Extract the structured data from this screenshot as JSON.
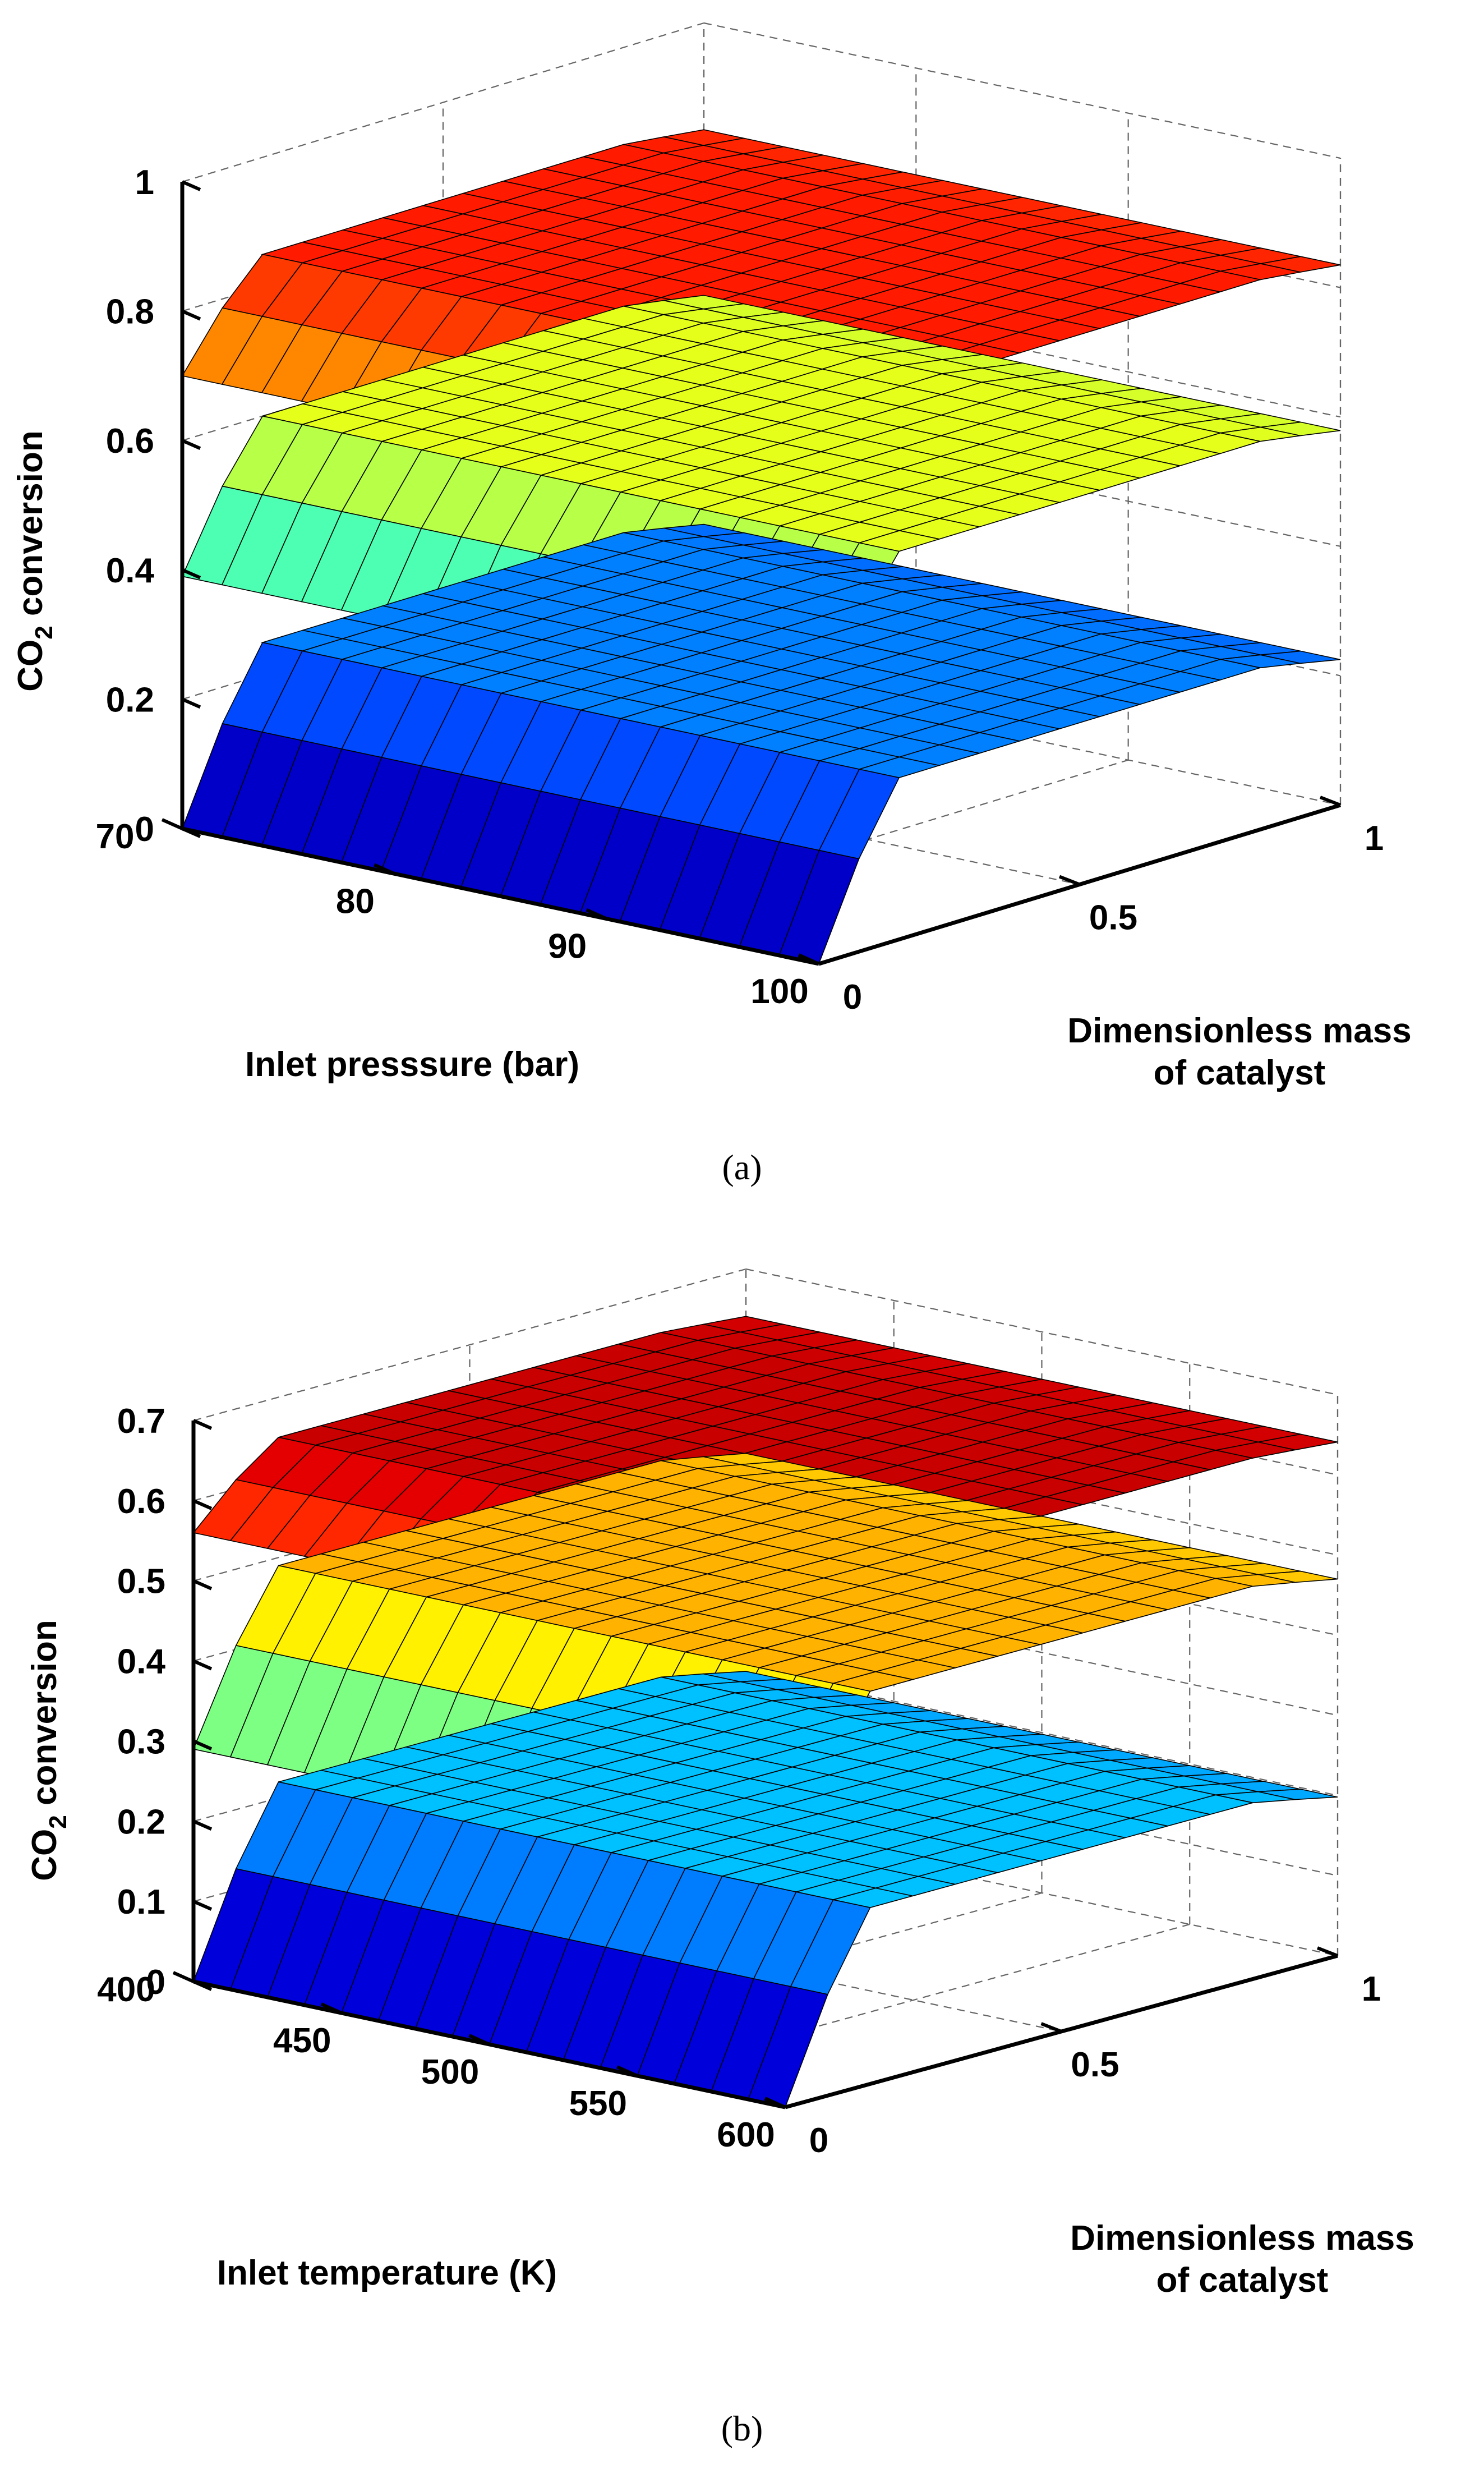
{
  "chart_data": [
    {
      "id": "a",
      "type": "surface",
      "caption": "(a)",
      "xlabel": "Inlet presssure (bar)",
      "ylabel_lines": [
        "Dimensionless mass",
        "of catalyst"
      ],
      "zlabel": "CO2 conversion",
      "zlabel_base": "CO",
      "zlabel_sub": "2",
      "zlabel_rest": " conversion",
      "xlim": [
        70,
        100
      ],
      "ylim": [
        0,
        1
      ],
      "zlim": [
        0,
        1
      ],
      "xticks": [
        "70",
        "80",
        "90",
        "100"
      ],
      "yticks": [
        "0",
        "0.5",
        "1"
      ],
      "zticks": [
        "0",
        "0.2",
        "0.4",
        "0.6",
        "0.8",
        "1"
      ],
      "surfaces": [
        {
          "name": "low",
          "min": 0.0,
          "plateau": 0.25
        },
        {
          "name": "mid",
          "min": 0.39,
          "plateau": 0.6
        },
        {
          "name": "high",
          "min": 0.7,
          "plateau": 0.85
        }
      ]
    },
    {
      "id": "b",
      "type": "surface",
      "caption": "(b)",
      "xlabel": "Inlet temperature (K)",
      "ylabel_lines": [
        "Dimensionless mass",
        "of catalyst"
      ],
      "zlabel": "CO2 conversion",
      "zlabel_base": "CO",
      "zlabel_sub": "2",
      "zlabel_rest": " conversion",
      "xlim": [
        400,
        600
      ],
      "ylim": [
        0,
        1
      ],
      "zlim": [
        0,
        0.7
      ],
      "xticks": [
        "400",
        "450",
        "500",
        "550",
        "600"
      ],
      "yticks": [
        "0",
        "0.5",
        "1"
      ],
      "zticks": [
        "0",
        "0.1",
        "0.2",
        "0.3",
        "0.4",
        "0.5",
        "0.6",
        "0.7"
      ],
      "surfaces": [
        {
          "name": "low",
          "min": 0.0,
          "plateau": 0.22
        },
        {
          "name": "mid",
          "min": 0.29,
          "plateau": 0.49
        },
        {
          "name": "high",
          "min": 0.56,
          "plateau": 0.65
        }
      ]
    }
  ]
}
